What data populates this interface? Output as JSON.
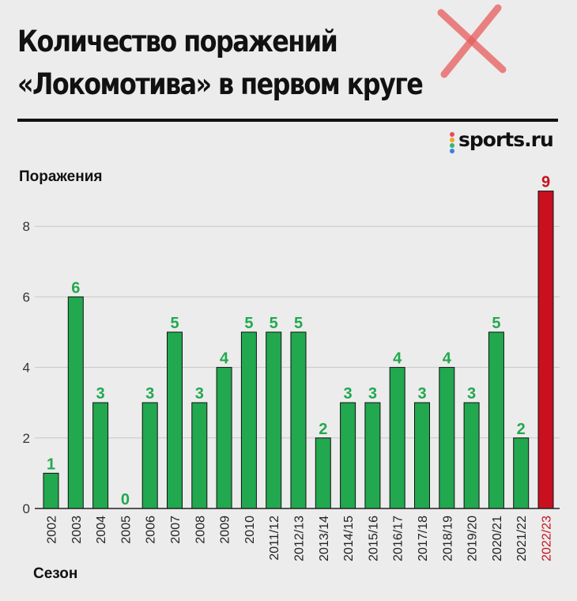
{
  "title": {
    "line1": "Количество поражений",
    "line2": "«Локомотива» в первом круге"
  },
  "logo": {
    "text": "sports.ru",
    "dot_colors": [
      "#e84a5f",
      "#f5a623",
      "#3bb273",
      "#2f80ed"
    ]
  },
  "colors": {
    "normal": "#22a84f",
    "highlight": "#c8101e",
    "grid": "#c8c8c8",
    "axis": "#222222"
  },
  "chart_data": {
    "type": "bar",
    "title": "Количество поражений «Локомотива» в первом круге",
    "xlabel": "Сезон",
    "ylabel": "Поражения",
    "ylim": [
      0,
      9
    ],
    "yticks": [
      0,
      2,
      4,
      6,
      8
    ],
    "grid": true,
    "categories": [
      "2002",
      "2003",
      "2004",
      "2005",
      "2006",
      "2007",
      "2008",
      "2009",
      "2010",
      "2011/12",
      "2012/13",
      "2013/14",
      "2014/15",
      "2015/16",
      "2016/17",
      "2017/18",
      "2018/19",
      "2019/20",
      "2020/21",
      "2021/22",
      "2022/23"
    ],
    "values": [
      1,
      6,
      3,
      0,
      3,
      5,
      3,
      4,
      5,
      5,
      5,
      2,
      3,
      3,
      4,
      3,
      4,
      3,
      5,
      2,
      9
    ],
    "highlight_index": 20
  }
}
